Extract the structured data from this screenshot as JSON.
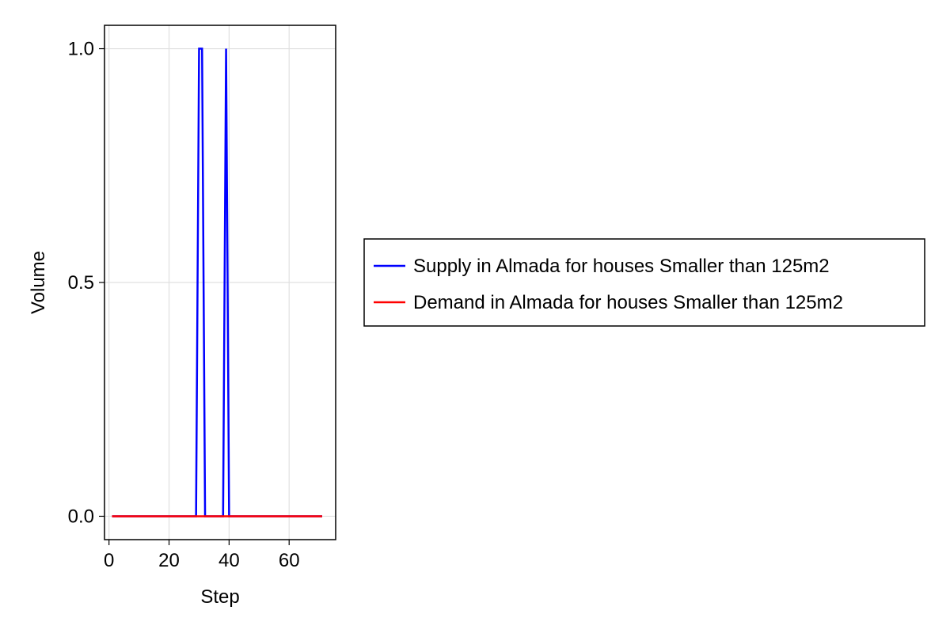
{
  "chart_data": {
    "type": "line",
    "title": "",
    "xlabel": "Step",
    "ylabel": "Volume",
    "xlim": [
      -1.5,
      75.5
    ],
    "ylim": [
      -0.05,
      1.05
    ],
    "x_ticks": [
      0,
      20,
      40,
      60
    ],
    "x_tick_labels": [
      "0",
      "20",
      "40",
      "60"
    ],
    "y_ticks": [
      0.0,
      0.5,
      1.0
    ],
    "y_tick_labels": [
      "0.0",
      "0.5",
      "1.0"
    ],
    "grid": true,
    "legend_position": "right",
    "series": [
      {
        "name": "Supply in Almada for houses Smaller than 125m2",
        "color": "#0000ff",
        "x": [
          1,
          29,
          30,
          31,
          32,
          38,
          39,
          40,
          71
        ],
        "y": [
          0,
          0,
          1,
          1,
          0,
          0,
          1,
          0,
          0
        ]
      },
      {
        "name": "Demand in Almada for houses Smaller than 125m2",
        "color": "#ff0000",
        "x": [
          1,
          71
        ],
        "y": [
          0,
          0
        ]
      }
    ]
  }
}
